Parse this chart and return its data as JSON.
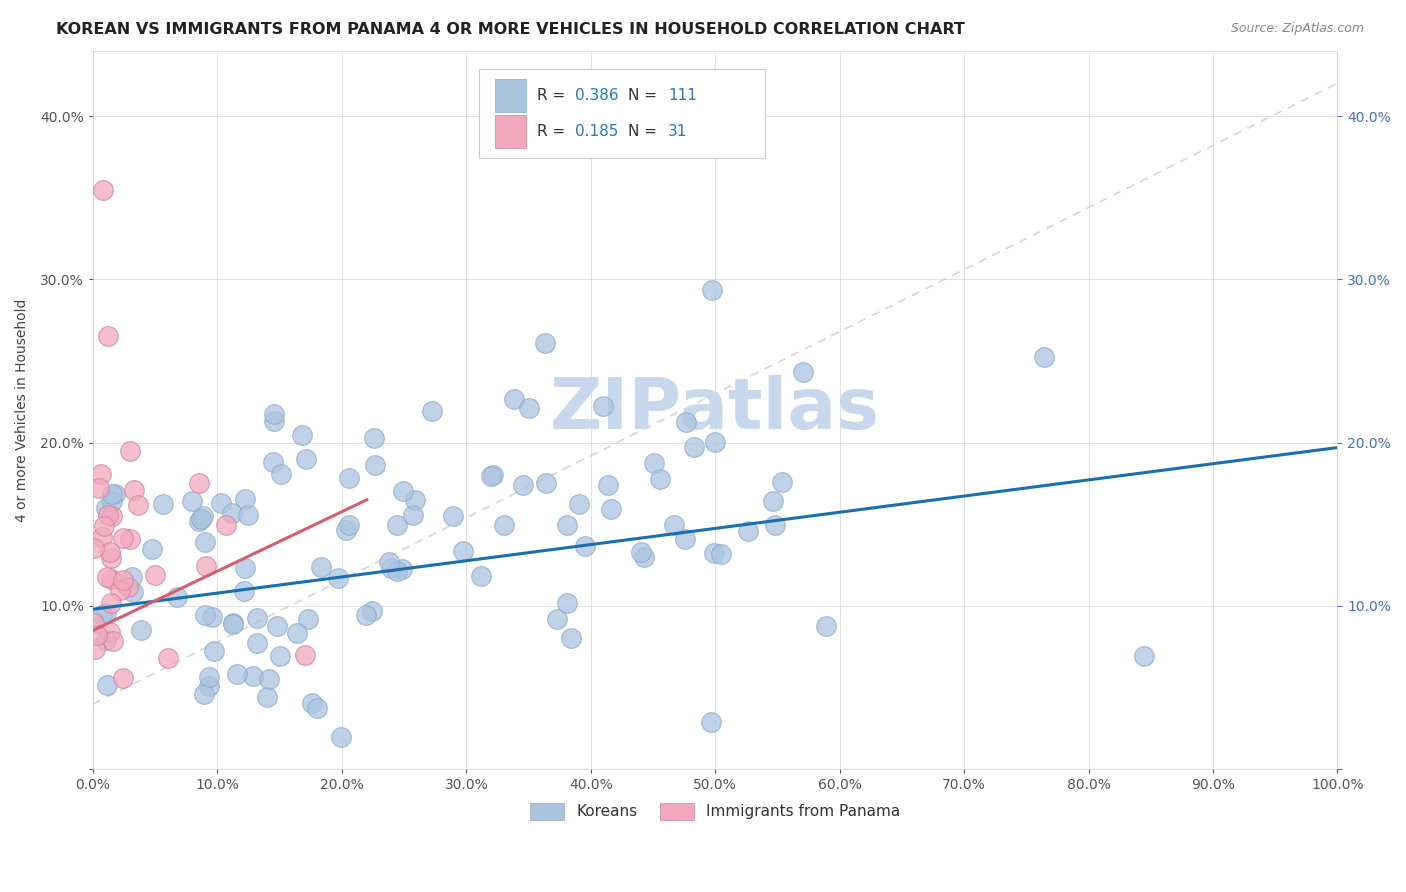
{
  "title": "KOREAN VS IMMIGRANTS FROM PANAMA 4 OR MORE VEHICLES IN HOUSEHOLD CORRELATION CHART",
  "source": "Source: ZipAtlas.com",
  "ylabel": "4 or more Vehicles in Household",
  "xlim": [
    0.0,
    1.0
  ],
  "ylim": [
    0.0,
    0.44
  ],
  "ytick_positions": [
    0.0,
    0.1,
    0.2,
    0.3,
    0.4
  ],
  "ytick_labels": [
    "",
    "10.0%",
    "20.0%",
    "30.0%",
    "40.0%"
  ],
  "xtick_positions": [
    0.0,
    0.1,
    0.2,
    0.3,
    0.4,
    0.5,
    0.6,
    0.7,
    0.8,
    0.9,
    1.0
  ],
  "xtick_labels": [
    "0.0%",
    "10.0%",
    "20.0%",
    "30.0%",
    "40.0%",
    "50.0%",
    "60.0%",
    "70.0%",
    "80.0%",
    "90.0%",
    "100.0%"
  ],
  "korean_R": 0.386,
  "korean_N": 111,
  "panama_R": 0.185,
  "panama_N": 31,
  "korean_color": "#aac4df",
  "panama_color": "#f2a8bc",
  "korean_line_color": "#1a6faf",
  "panama_line_color": "#d45f6e",
  "trend_line_color": "#cccccc",
  "legend_korean": "Koreans",
  "legend_panama": "Immigrants from Panama",
  "watermark_text": "ZIPatlas",
  "watermark_color": "#c8d8ec",
  "korean_line_x": [
    0.0,
    1.0
  ],
  "korean_line_y": [
    0.098,
    0.197
  ],
  "panama_line_x": [
    0.0,
    0.22
  ],
  "panama_line_y": [
    0.085,
    0.165
  ],
  "trend_line_x": [
    0.0,
    1.0
  ],
  "trend_line_y": [
    0.04,
    0.42
  ]
}
